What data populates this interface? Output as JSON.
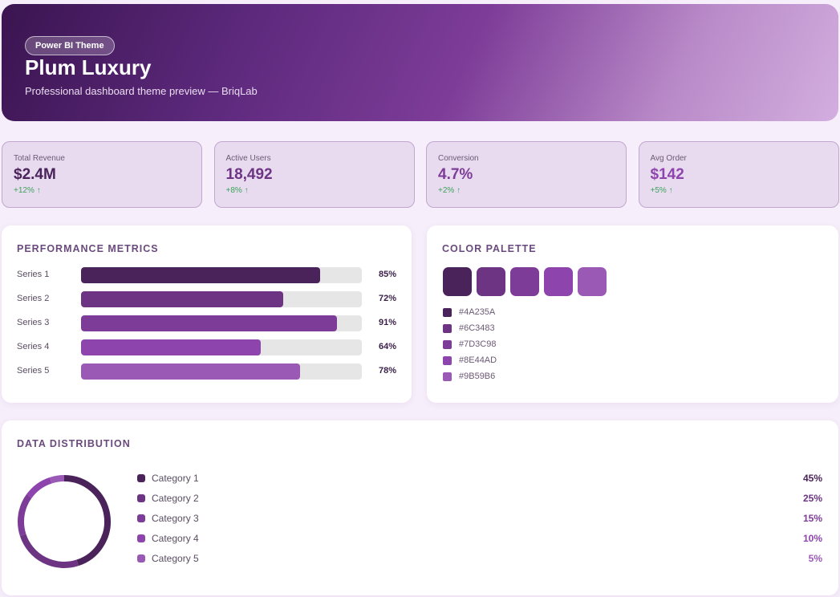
{
  "header": {
    "badge": "Power BI Theme",
    "title": "Plum Luxury",
    "subtitle": "Professional dashboard theme preview — BriqLab"
  },
  "kpis": [
    {
      "label": "Total Revenue",
      "value": "$2.4M",
      "change": "+12% ↑",
      "color": "#4A235A"
    },
    {
      "label": "Active Users",
      "value": "18,492",
      "change": "+8% ↑",
      "color": "#6C3483"
    },
    {
      "label": "Conversion",
      "value": "4.7%",
      "change": "+2% ↑",
      "color": "#7D3C98"
    },
    {
      "label": "Avg Order",
      "value": "$142",
      "change": "+5% ↑",
      "color": "#8E44AD"
    }
  ],
  "performance": {
    "title": "PERFORMANCE METRICS",
    "categories": [
      "Series 1",
      "Series 2",
      "Series 3",
      "Series 4",
      "Series 5"
    ],
    "values": [
      85,
      72,
      91,
      64,
      78
    ],
    "value_labels": [
      "85%",
      "72%",
      "91%",
      "64%",
      "78%"
    ],
    "colors": [
      "#4A235A",
      "#6C3483",
      "#7D3C98",
      "#8E44AD",
      "#9B59B6"
    ],
    "xlim": [
      0,
      100
    ]
  },
  "palette": {
    "title": "COLOR PALETTE",
    "colors": [
      "#4A235A",
      "#6C3483",
      "#7D3C98",
      "#8E44AD",
      "#9B59B6"
    ]
  },
  "distribution": {
    "title": "DATA DISTRIBUTION",
    "type": "donut",
    "categories": [
      "Category 1",
      "Category 2",
      "Category 3",
      "Category 4",
      "Category 5"
    ],
    "values": [
      45,
      25,
      15,
      10,
      5
    ],
    "value_labels": [
      "45%",
      "25%",
      "15%",
      "10%",
      "5%"
    ],
    "colors": [
      "#4A235A",
      "#6C3483",
      "#7D3C98",
      "#8E44AD",
      "#9B59B6"
    ]
  }
}
